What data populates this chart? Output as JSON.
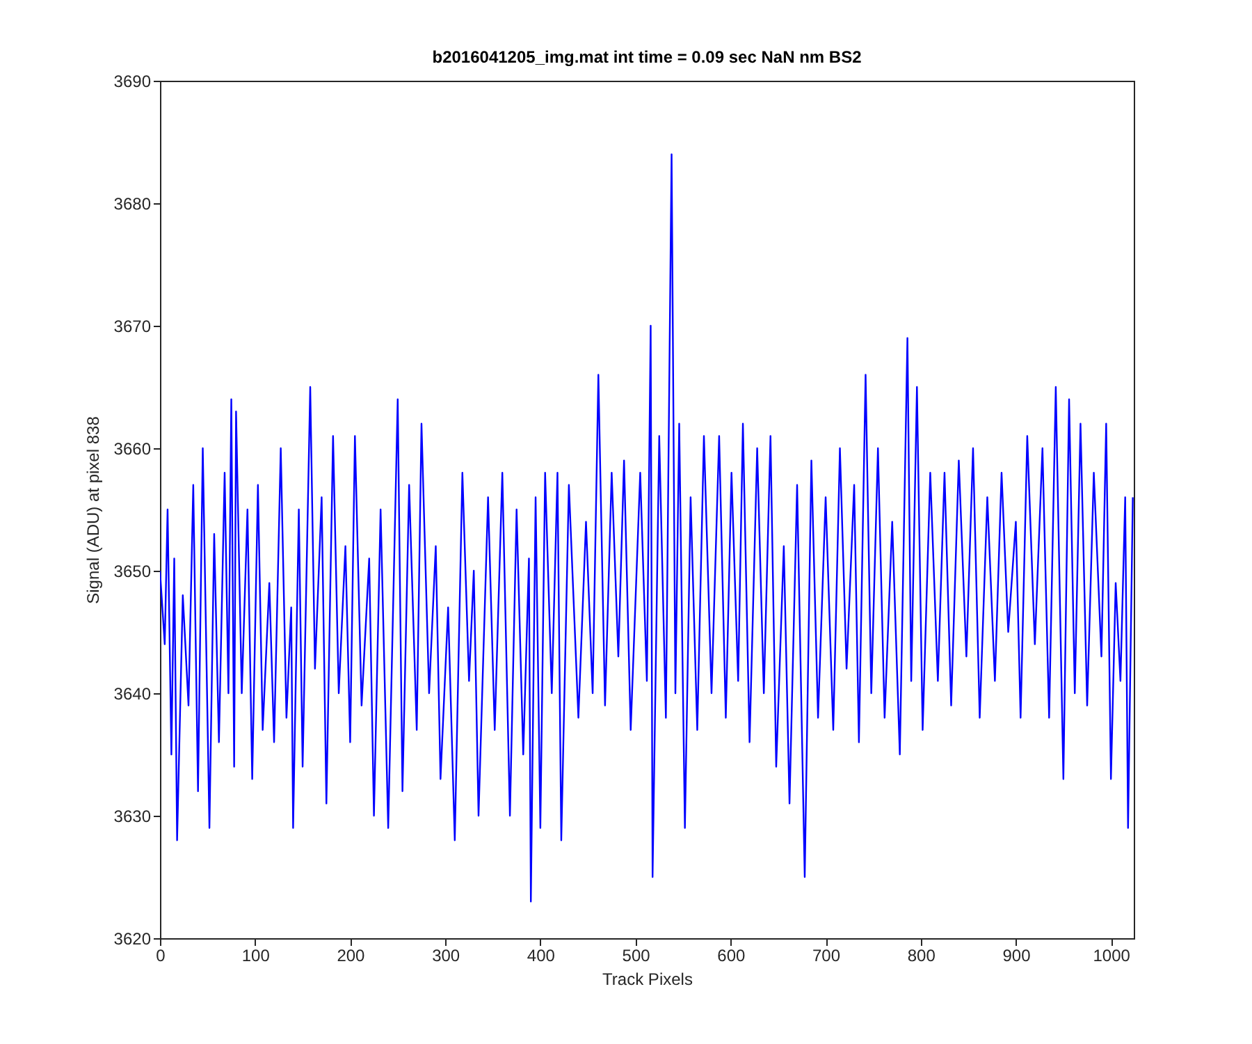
{
  "chart_data": {
    "type": "line",
    "title": "b2016041205_img.mat int time = 0.09 sec  NaN nm BS2",
    "xlabel": "Track Pixels",
    "ylabel": "Signal (ADU) at pixel 838",
    "xlim": [
      0,
      1024
    ],
    "xticks": [
      0,
      100,
      200,
      300,
      400,
      500,
      600,
      700,
      800,
      900,
      1000
    ],
    "ylim": [
      3620,
      3690
    ],
    "yticks": [
      3620,
      3630,
      3640,
      3650,
      3660,
      3670,
      3680,
      3690
    ],
    "grid": false,
    "marker": "none",
    "line_style": "solid",
    "series": [
      {
        "color": "#0000ff",
        "x": [
          0,
          5,
          8,
          12,
          15,
          18,
          24,
          30,
          35,
          40,
          45,
          52,
          57,
          62,
          68,
          72,
          75,
          78,
          80,
          86,
          92,
          97,
          103,
          108,
          115,
          120,
          127,
          133,
          138,
          140,
          146,
          150,
          158,
          163,
          170,
          175,
          182,
          188,
          195,
          200,
          205,
          212,
          220,
          225,
          232,
          240,
          250,
          255,
          262,
          270,
          275,
          283,
          290,
          295,
          303,
          310,
          318,
          325,
          330,
          335,
          345,
          352,
          360,
          368,
          375,
          382,
          388,
          390,
          395,
          400,
          405,
          412,
          418,
          422,
          430,
          440,
          448,
          455,
          461,
          468,
          475,
          482,
          488,
          495,
          505,
          512,
          516,
          518,
          525,
          532,
          538,
          542,
          546,
          552,
          558,
          565,
          572,
          580,
          588,
          595,
          601,
          608,
          613,
          620,
          628,
          635,
          642,
          648,
          656,
          662,
          670,
          678,
          685,
          692,
          700,
          708,
          715,
          722,
          730,
          735,
          742,
          748,
          755,
          762,
          770,
          778,
          786,
          790,
          796,
          802,
          810,
          818,
          825,
          832,
          840,
          848,
          855,
          862,
          870,
          878,
          885,
          892,
          900,
          905,
          912,
          920,
          928,
          935,
          942,
          950,
          956,
          962,
          968,
          975,
          982,
          990,
          995,
          1000,
          1005,
          1010,
          1015,
          1018,
          1023
        ],
        "values": [
          3650,
          3644,
          3655,
          3635,
          3651,
          3628,
          3648,
          3639,
          3657,
          3632,
          3660,
          3629,
          3653,
          3636,
          3658,
          3640,
          3664,
          3634,
          3663,
          3640,
          3655,
          3633,
          3657,
          3637,
          3649,
          3636,
          3660,
          3638,
          3647,
          3629,
          3655,
          3634,
          3665,
          3642,
          3656,
          3631,
          3661,
          3640,
          3652,
          3636,
          3661,
          3639,
          3651,
          3630,
          3655,
          3629,
          3664,
          3632,
          3657,
          3637,
          3662,
          3640,
          3652,
          3633,
          3647,
          3628,
          3658,
          3641,
          3650,
          3630,
          3656,
          3637,
          3658,
          3630,
          3655,
          3635,
          3651,
          3623,
          3656,
          3629,
          3658,
          3640,
          3658,
          3628,
          3657,
          3638,
          3654,
          3640,
          3666,
          3639,
          3658,
          3643,
          3659,
          3637,
          3658,
          3641,
          3670,
          3625,
          3661,
          3638,
          3684,
          3640,
          3662,
          3629,
          3656,
          3637,
          3661,
          3640,
          3661,
          3638,
          3658,
          3641,
          3662,
          3636,
          3660,
          3640,
          3661,
          3634,
          3652,
          3631,
          3657,
          3625,
          3659,
          3638,
          3656,
          3637,
          3660,
          3642,
          3657,
          3636,
          3666,
          3640,
          3660,
          3638,
          3654,
          3635,
          3669,
          3641,
          3665,
          3637,
          3658,
          3641,
          3658,
          3639,
          3659,
          3643,
          3660,
          3638,
          3656,
          3641,
          3658,
          3645,
          3654,
          3638,
          3661,
          3644,
          3660,
          3638,
          3665,
          3633,
          3664,
          3640,
          3662,
          3639,
          3658,
          3643,
          3662,
          3633,
          3649,
          3641,
          3656,
          3629,
          3656
        ]
      }
    ]
  }
}
